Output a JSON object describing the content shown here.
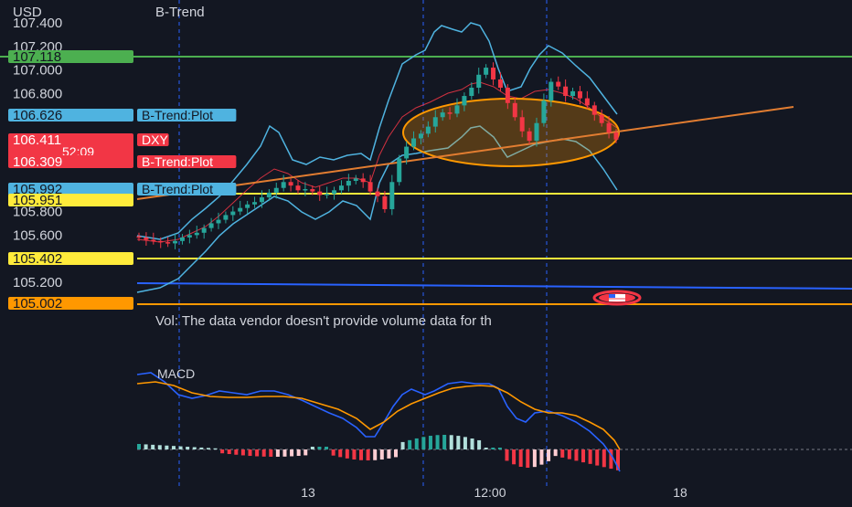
{
  "header": {
    "currency": "USD",
    "indicator": "B-Trend"
  },
  "price_axis": {
    "ticks": [
      "107.400",
      "107.200",
      "107.000",
      "106.800",
      "105.800",
      "105.600",
      "105.200"
    ]
  },
  "badges": [
    {
      "value": "107.118",
      "color": "#4caf50",
      "text_color": "#131722"
    },
    {
      "value": "106.626",
      "color": "#4fb3e0",
      "text_color": "#131722",
      "tag": "B-Trend:Plot"
    },
    {
      "value": "106.411",
      "color": "#f23645",
      "text_color": "#ffffff",
      "extra": "52:09",
      "tag": "DXY"
    },
    {
      "value": "106.309",
      "color": "#f23645",
      "text_color": "#ffffff",
      "tag": "B-Trend:Plot"
    },
    {
      "value": "105.992",
      "color": "#4fb3e0",
      "text_color": "#131722",
      "tag": "B-Trend:Plot"
    },
    {
      "value": "105.951",
      "color": "#ffeb3b",
      "text_color": "#131722"
    },
    {
      "value": "105.402",
      "color": "#ffeb3b",
      "text_color": "#131722"
    },
    {
      "value": "105.002",
      "color": "#ff9800",
      "text_color": "#131722"
    }
  ],
  "volume_note": "Vol: The data vendor doesn't provide volume data for th",
  "macd": {
    "title": "MACD",
    "macd_color": "#2962ff",
    "signal_color": "#ff9800"
  },
  "time_axis": {
    "labels": [
      "13",
      "12:00",
      "18"
    ]
  },
  "chart_data": {
    "type": "candlestick",
    "symbol": "DXY",
    "indicator": "B-Trend",
    "y_range": [
      104.95,
      107.45
    ],
    "horizontal_levels": [
      {
        "value": 107.118,
        "color": "#4caf50"
      },
      {
        "value": 105.951,
        "color": "#ffeb3b"
      },
      {
        "value": 105.402,
        "color": "#ffeb3b"
      },
      {
        "value": 105.002,
        "color": "#ff9800"
      }
    ],
    "closes": [
      105.58,
      105.56,
      105.55,
      105.54,
      105.53,
      105.55,
      105.58,
      105.6,
      105.62,
      105.66,
      105.7,
      105.73,
      105.77,
      105.8,
      105.83,
      105.86,
      105.88,
      105.92,
      105.96,
      106.0,
      106.05,
      106.02,
      105.98,
      105.99,
      105.97,
      105.94,
      105.95,
      105.98,
      106.02,
      106.06,
      106.08,
      106.05,
      105.97,
      105.93,
      105.82,
      106.05,
      106.25,
      106.35,
      106.42,
      106.46,
      106.52,
      106.6,
      106.64,
      106.63,
      106.7,
      106.78,
      106.85,
      106.96,
      107.02,
      106.92,
      106.85,
      106.72,
      106.6,
      106.48,
      106.4,
      106.55,
      106.74,
      106.9,
      106.86,
      106.78,
      106.82,
      106.76,
      106.7,
      106.62,
      106.55,
      106.47,
      106.41
    ],
    "trend_line": {
      "start": 105.88,
      "end": 106.72
    },
    "ellipse": {
      "center_price": 106.42,
      "price_half_height": 0.27
    }
  }
}
